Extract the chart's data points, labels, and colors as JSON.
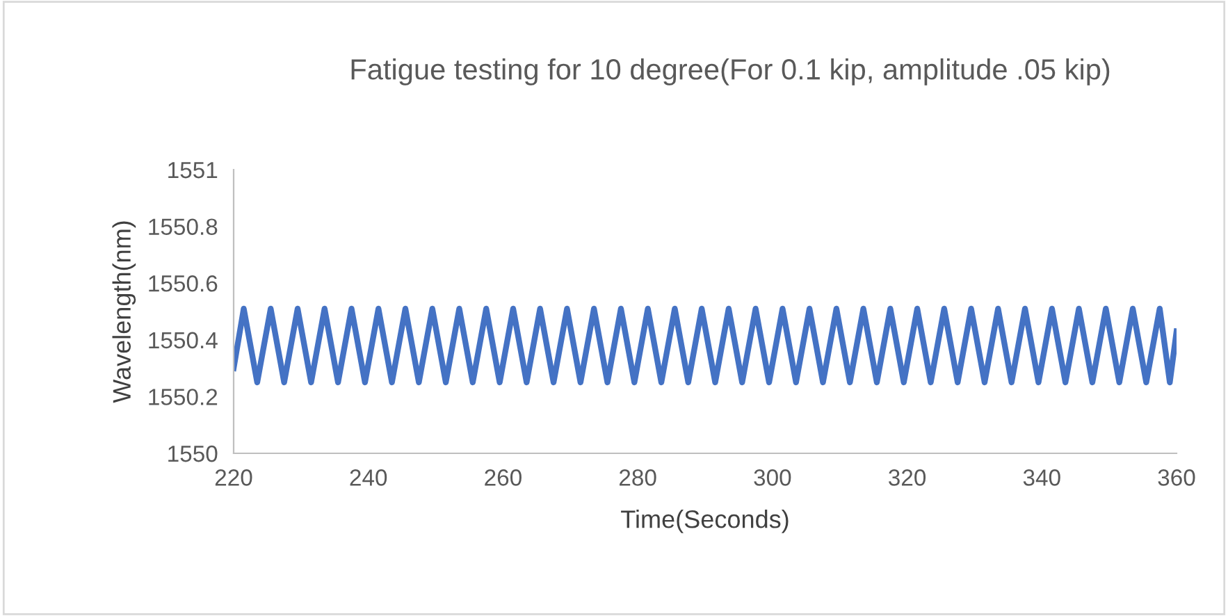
{
  "chart_data": {
    "type": "line",
    "title": "Fatigue testing for 10 degree(For 0.1 kip, amplitude .05 kip)",
    "xlabel": "Time(Seconds)",
    "ylabel": "Wavelength(nm)",
    "xlim": [
      220,
      360
    ],
    "xticks": [
      220,
      240,
      260,
      280,
      300,
      320,
      340,
      360
    ],
    "ylim": [
      1550,
      1551
    ],
    "yticks": [
      1550,
      1550.2,
      1550.4,
      1550.6,
      1550.8,
      1551
    ],
    "grid": false,
    "legend": false,
    "series": [
      {
        "color": "#4472c4",
        "x": [
          220,
          221.5,
          223.5,
          225.5,
          227.5,
          229.5,
          231.5,
          233.5,
          235.5,
          237.5,
          239.5,
          241.5,
          243.5,
          245.5,
          247.5,
          249.5,
          251.5,
          253.5,
          255.5,
          257.5,
          259.5,
          261.5,
          263.5,
          265.5,
          267.5,
          269.5,
          271.5,
          273.5,
          275.5,
          277.5,
          279.5,
          281.5,
          283.5,
          285.5,
          287.5,
          289.5,
          291.5,
          293.5,
          295.5,
          297.5,
          299.5,
          301.5,
          303.5,
          305.5,
          307.5,
          309.5,
          311.5,
          313.5,
          315.5,
          317.5,
          319.5,
          321.5,
          323.5,
          325.5,
          327.5,
          329.5,
          331.5,
          333.5,
          335.5,
          337.5,
          339.5,
          341.5,
          343.5,
          345.5,
          347.5,
          349.5,
          351.5,
          353.5,
          355.5,
          357.5,
          359,
          360
        ],
        "values": [
          1550.3,
          1550.51,
          1550.25,
          1550.51,
          1550.25,
          1550.51,
          1550.25,
          1550.51,
          1550.25,
          1550.51,
          1550.25,
          1550.51,
          1550.25,
          1550.51,
          1550.25,
          1550.51,
          1550.25,
          1550.51,
          1550.25,
          1550.51,
          1550.25,
          1550.51,
          1550.25,
          1550.51,
          1550.25,
          1550.51,
          1550.25,
          1550.51,
          1550.25,
          1550.51,
          1550.25,
          1550.51,
          1550.25,
          1550.51,
          1550.25,
          1550.51,
          1550.25,
          1550.51,
          1550.25,
          1550.51,
          1550.25,
          1550.51,
          1550.25,
          1550.51,
          1550.25,
          1550.51,
          1550.25,
          1550.51,
          1550.25,
          1550.51,
          1550.25,
          1550.51,
          1550.25,
          1550.51,
          1550.25,
          1550.51,
          1550.25,
          1550.51,
          1550.25,
          1550.51,
          1550.25,
          1550.51,
          1550.25,
          1550.51,
          1550.25,
          1550.51,
          1550.25,
          1550.51,
          1550.25,
          1550.51,
          1550.25,
          1550.43
        ]
      }
    ]
  }
}
